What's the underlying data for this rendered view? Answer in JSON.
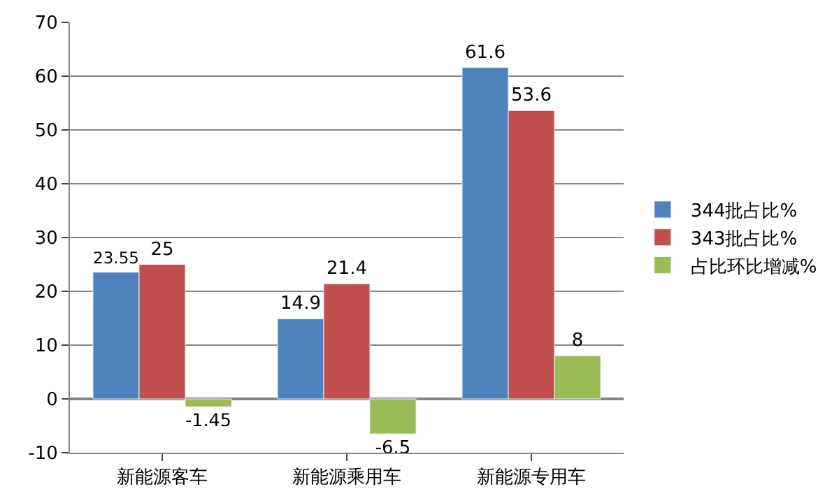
{
  "chart_data": {
    "type": "bar",
    "categories": [
      "新能源客车",
      "新能源乘用车",
      "新能源专用车"
    ],
    "series": [
      {
        "name": "344批占比%",
        "color": "#4f81bd",
        "values": [
          23.55,
          14.9,
          61.6
        ]
      },
      {
        "name": "343批占比%",
        "color": "#c0504d",
        "values": [
          25,
          21.4,
          53.6
        ]
      },
      {
        "name": "占比环比增减%",
        "color": "#9bbb59",
        "values": [
          -1.45,
          -6.5,
          8
        ]
      }
    ],
    "ylim": [
      -10,
      70
    ],
    "yticks": [
      -10,
      0,
      10,
      20,
      30,
      40,
      50,
      60,
      70
    ],
    "grid": "y",
    "legend": "right",
    "data_labels": true
  }
}
